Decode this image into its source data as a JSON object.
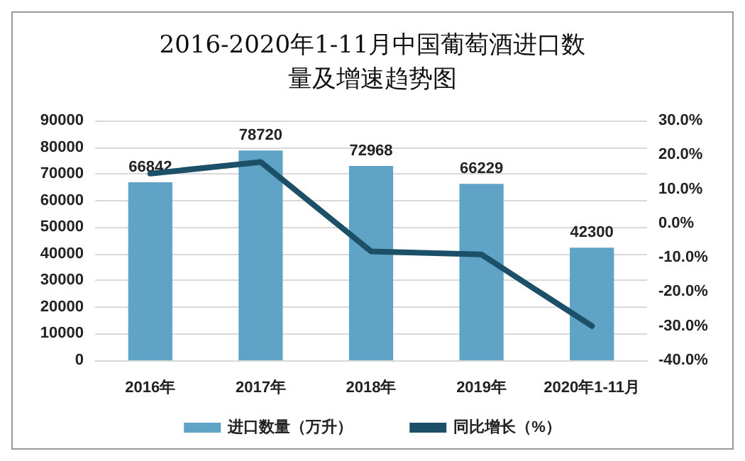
{
  "chart_data": {
    "type": "bar",
    "title": "2016-2020年1-11月中国葡萄酒进口数量及增速趋势图",
    "categories": [
      "2016年",
      "2017年",
      "2018年",
      "2019年",
      "2020年1-11月"
    ],
    "series": [
      {
        "name": "进口数量（万升）",
        "color": "#5fa3c6",
        "values": [
          66842,
          78720,
          72968,
          66229,
          42300
        ],
        "value_labels": [
          "66842",
          "78720",
          "72968",
          "66229",
          "42300"
        ]
      },
      {
        "name": "同比增长（%）",
        "type": "line",
        "axis": "y2",
        "color": "#1b5068",
        "values": [
          14.5,
          17.9,
          -8.2,
          -9.1,
          -30.0
        ]
      }
    ],
    "ylim": [
      0,
      90000
    ],
    "yticks": [
      0,
      10000,
      20000,
      30000,
      40000,
      50000,
      60000,
      70000,
      80000,
      90000
    ],
    "y2lim": [
      -40,
      30
    ],
    "y2ticks": [
      {
        "value": -40,
        "label": "-40.0%"
      },
      {
        "value": -30,
        "label": "-30.0%"
      },
      {
        "value": -20,
        "label": "-20.0%"
      },
      {
        "value": -10,
        "label": "-10.0%"
      },
      {
        "value": 0,
        "label": "0.0%"
      },
      {
        "value": 10,
        "label": "10.0%"
      },
      {
        "value": 20,
        "label": "20.0%"
      },
      {
        "value": 30,
        "label": "30.0%"
      }
    ],
    "grid": "y",
    "legend": "bottom",
    "marker": "none",
    "line_style": "solid"
  }
}
